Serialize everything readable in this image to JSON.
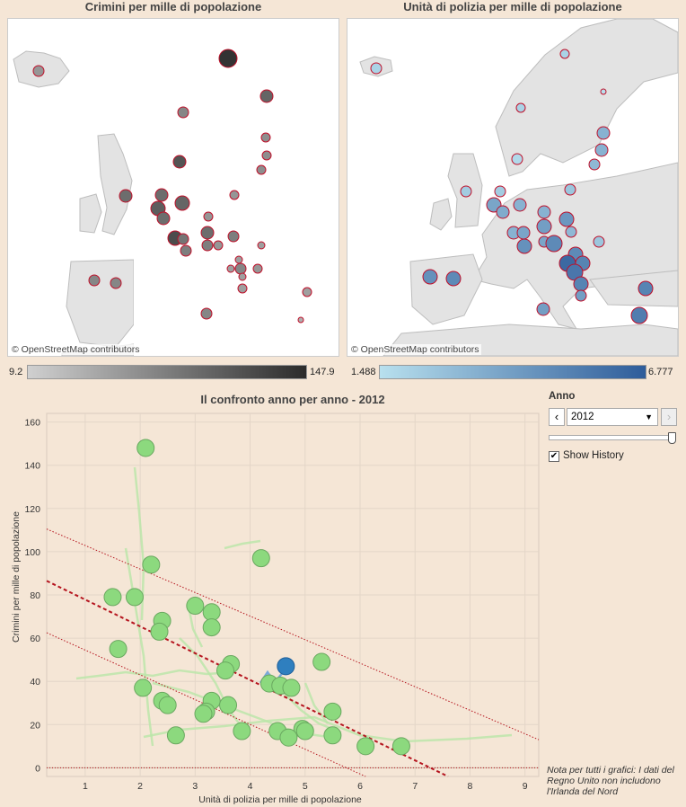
{
  "maps": {
    "crime": {
      "title": "Crimini per mille di popolazione",
      "credit": "© OpenStreetMap contributors",
      "legend_min": "9.2",
      "legend_max": "147.9",
      "color_low": "#d0d0d0",
      "color_high": "#2b2b2b",
      "outline": "#c0102a"
    },
    "police": {
      "title": "Unità di polizia per mille di popolazione",
      "credit": "© OpenStreetMap contributors",
      "legend_min": "1.488",
      "legend_max": "6.777",
      "color_low": "#b8e0ee",
      "color_high": "#2e5c9a",
      "outline": "#c0102a"
    }
  },
  "controls": {
    "label": "Anno",
    "selected_year": "2012",
    "prev_icon": "chevron-left",
    "next_icon": "chevron-right",
    "show_history_label": "Show History",
    "show_history_checked": true,
    "slider_fraction": 1.0
  },
  "note": "Nota per tutti i grafici: I dati del Regno Unito non includono l'Irlanda del Nord",
  "chart_data": {
    "type": "scatter",
    "title": "Il confronto anno per anno - 2012",
    "xlabel": "Unità di polizia per mille di popolazione",
    "ylabel": "Crimini per mille di popolazione",
    "xlim": [
      0.3,
      9.25
    ],
    "ylim": [
      -4,
      164
    ],
    "x_ticks": [
      1,
      2,
      3,
      4,
      5,
      6,
      7,
      8,
      9
    ],
    "y_ticks": [
      0,
      20,
      40,
      60,
      80,
      100,
      120,
      140,
      160
    ],
    "grid": true,
    "point_color": "#8cd97e",
    "highlight_color": "#2f7fbf",
    "trend_color": "#b5141e",
    "points": [
      {
        "x": 2.1,
        "y": 148
      },
      {
        "x": 4.2,
        "y": 97
      },
      {
        "x": 2.2,
        "y": 94
      },
      {
        "x": 1.5,
        "y": 79
      },
      {
        "x": 1.9,
        "y": 79
      },
      {
        "x": 3.0,
        "y": 75
      },
      {
        "x": 3.3,
        "y": 72
      },
      {
        "x": 2.4,
        "y": 68
      },
      {
        "x": 3.3,
        "y": 65
      },
      {
        "x": 2.35,
        "y": 63
      },
      {
        "x": 1.6,
        "y": 55
      },
      {
        "x": 5.3,
        "y": 49
      },
      {
        "x": 3.65,
        "y": 48
      },
      {
        "x": 3.55,
        "y": 45
      },
      {
        "x": 4.35,
        "y": 39
      },
      {
        "x": 4.55,
        "y": 38
      },
      {
        "x": 4.75,
        "y": 37
      },
      {
        "x": 2.05,
        "y": 37
      },
      {
        "x": 2.4,
        "y": 31
      },
      {
        "x": 3.3,
        "y": 31
      },
      {
        "x": 2.5,
        "y": 29
      },
      {
        "x": 3.6,
        "y": 29
      },
      {
        "x": 3.2,
        "y": 26
      },
      {
        "x": 5.5,
        "y": 26
      },
      {
        "x": 3.15,
        "y": 25
      },
      {
        "x": 4.95,
        "y": 18
      },
      {
        "x": 5.0,
        "y": 17
      },
      {
        "x": 3.85,
        "y": 17
      },
      {
        "x": 4.5,
        "y": 17
      },
      {
        "x": 2.65,
        "y": 15
      },
      {
        "x": 5.5,
        "y": 15
      },
      {
        "x": 4.7,
        "y": 14
      },
      {
        "x": 6.1,
        "y": 10
      },
      {
        "x": 6.75,
        "y": 10
      }
    ],
    "highlight": {
      "x": 4.65,
      "y": 47
    },
    "trend": {
      "x0": 0.3,
      "y0": 86.5,
      "x1": 7.6,
      "y1": -4
    },
    "band_upper": {
      "x0": 0.3,
      "y0": 110.5,
      "x1": 9.25,
      "y1": 13
    },
    "band_lower": {
      "x0": 0.3,
      "y0": 62.5,
      "x1": 6.1,
      "y1": -4
    }
  }
}
